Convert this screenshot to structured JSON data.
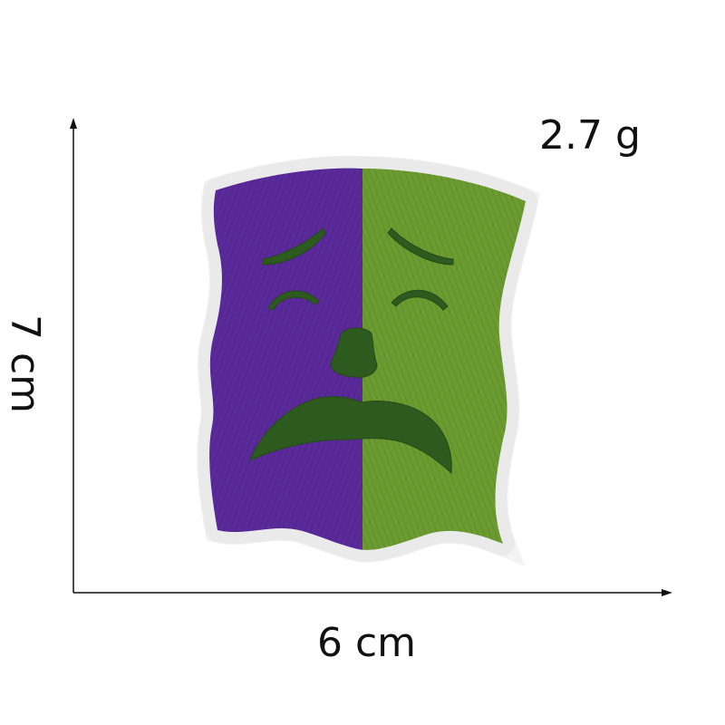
{
  "labels": {
    "weight": "2.7 g",
    "height": "7 cm",
    "width": "6 cm"
  },
  "patch": {
    "subject": "tragedy-mask-embroidered-patch",
    "colors": {
      "left_half": "#5a2a9a",
      "right_half": "#6a9a30",
      "features": "#2d5a1e",
      "border": "#f4f4f4"
    }
  },
  "axis_color": "#111111"
}
